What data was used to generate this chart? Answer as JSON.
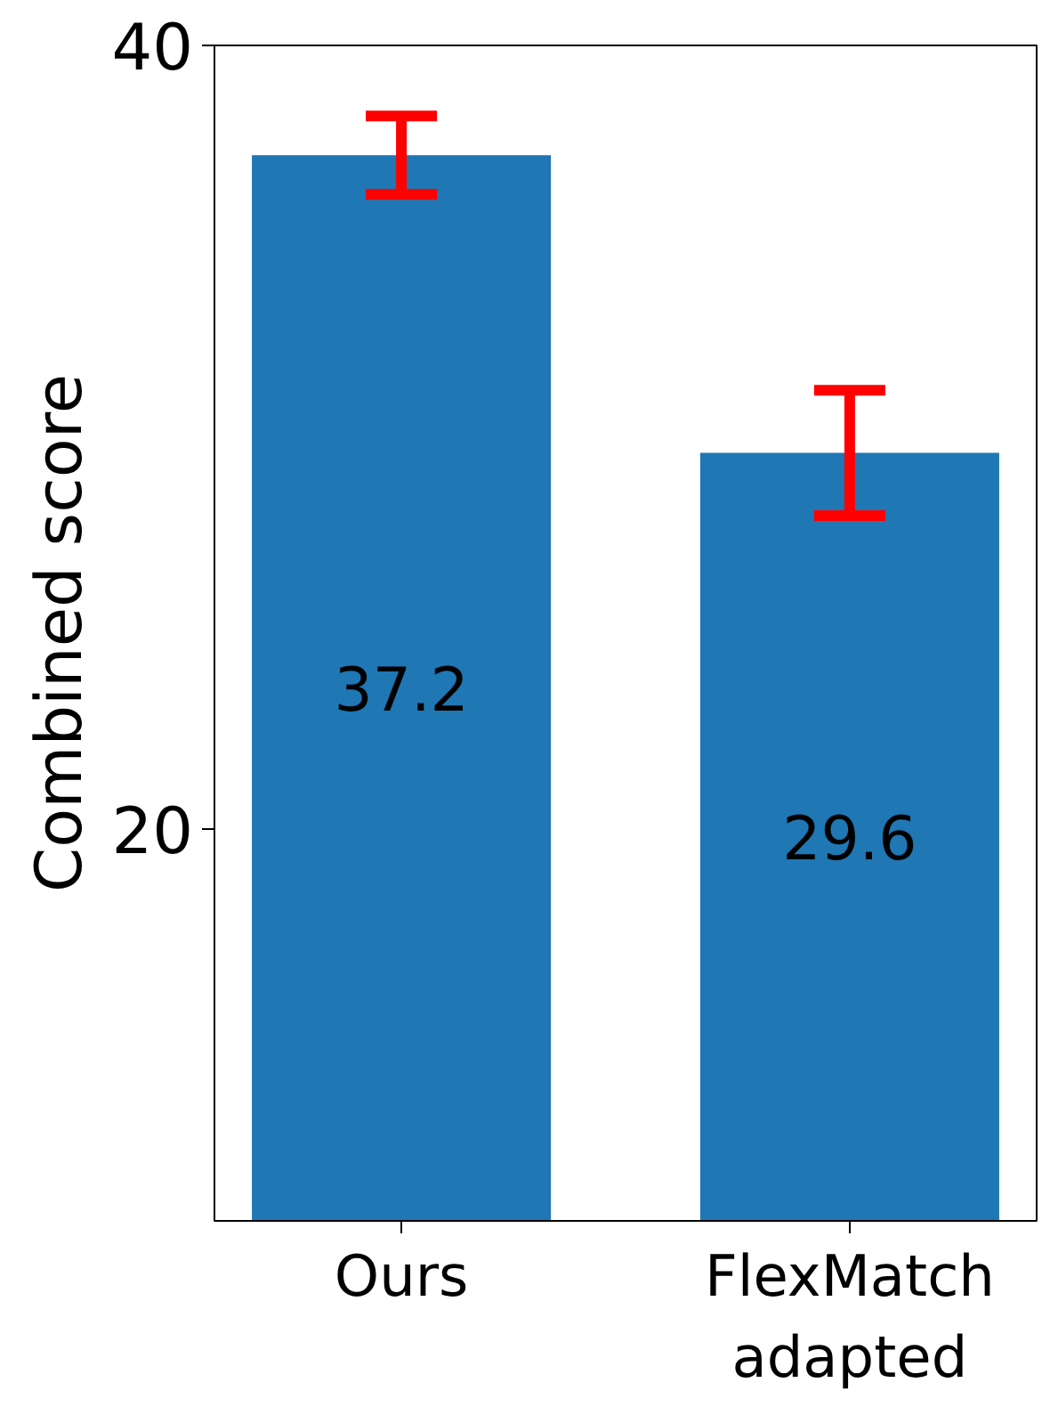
{
  "chart_data": {
    "type": "bar",
    "ylabel": "Combined score",
    "categories": [
      "Ours",
      "FlexMatch\nadapted"
    ],
    "values": [
      37.2,
      29.6
    ],
    "color": "#1f77b4",
    "errors": [
      1.0,
      1.6
    ],
    "ylim": [
      10,
      40
    ],
    "yticks": [
      20,
      40
    ],
    "grid": false,
    "data_labels": true
  }
}
